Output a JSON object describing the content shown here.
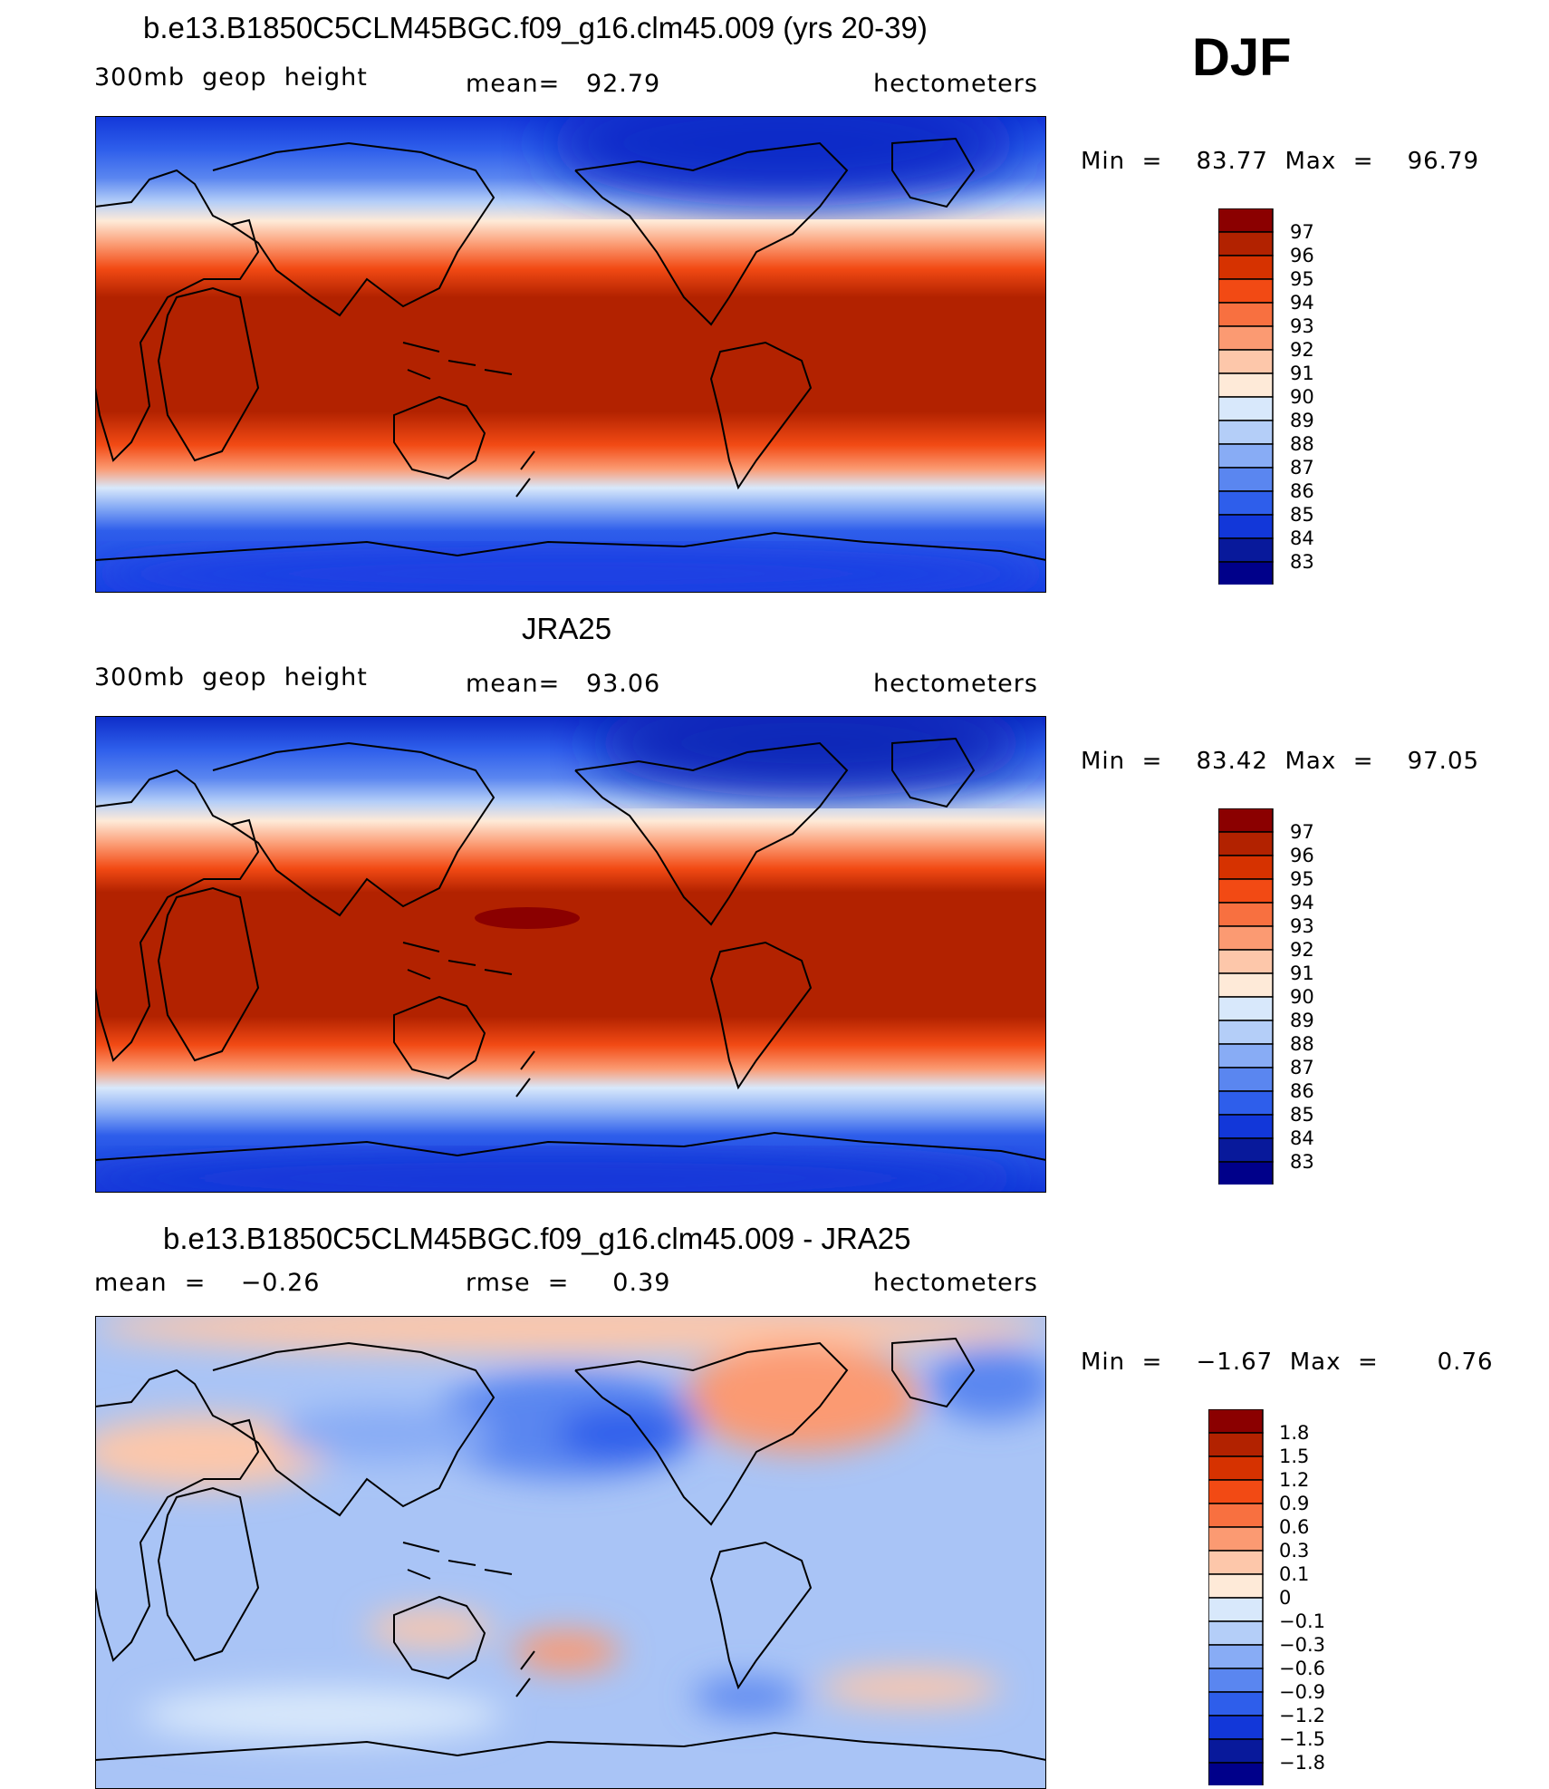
{
  "header": {
    "season": "DJF"
  },
  "panels": [
    {
      "title": "b.e13.B1850C5CLM45BGC.f09_g16.clm45.009 (yrs 20-39)",
      "left_text": "300mb  geop  height",
      "center_text": "mean=   92.79",
      "units": "hectometers",
      "minmax": "Min  =    83.77  Max  =    96.79",
      "colorbar_labels": [
        "97",
        "96",
        "95",
        "94",
        "93",
        "92",
        "91",
        "90",
        "89",
        "88",
        "87",
        "86",
        "85",
        "84",
        "83"
      ],
      "colors": [
        "#8B0000",
        "#B22200",
        "#D63200",
        "#F24A14",
        "#F87040",
        "#FB9A72",
        "#FDC7AA",
        "#FEEAD8",
        "#D8E8FB",
        "#B4CEF8",
        "#88ACF5",
        "#5A86F0",
        "#2E5EEB",
        "#1237D9",
        "#08199B",
        "#00008A"
      ],
      "fields": {
        "peak": "",
        "ant": "#1A3FE3",
        "arc": "#0D2CC8"
      }
    },
    {
      "title": "JRA25",
      "left_text": "300mb  geop  height",
      "center_text": "mean=   93.06",
      "units": "hectometers",
      "minmax": "Min  =    83.42  Max  =    97.05",
      "colorbar_labels": [
        "97",
        "96",
        "95",
        "94",
        "93",
        "92",
        "91",
        "90",
        "89",
        "88",
        "87",
        "86",
        "85",
        "84",
        "83"
      ],
      "colors": [
        "#8B0000",
        "#B22200",
        "#D63200",
        "#F24A14",
        "#F87040",
        "#FB9A72",
        "#FDC7AA",
        "#FEEAD8",
        "#D8E8FB",
        "#B4CEF8",
        "#88ACF5",
        "#5A86F0",
        "#2E5EEB",
        "#1237D9",
        "#08199B",
        "#00008A"
      ],
      "fields": {
        "peak": "#8B0000",
        "ant": "#1237D9",
        "arc": "#0A25B8"
      }
    },
    {
      "title": "b.e13.B1850C5CLM45BGC.f09_g16.clm45.009 - JRA25",
      "left_text": "mean  =    −0.26",
      "center_text": "rmse  =     0.39",
      "units": "hectometers",
      "minmax": "Min  =    −1.67  Max  =       0.76",
      "colorbar_labels": [
        "1.8",
        "1.5",
        "1.2",
        "0.9",
        "0.6",
        "0.3",
        "0.1",
        "0",
        "−0.1",
        "−0.3",
        "−0.6",
        "−0.9",
        "−1.2",
        "−1.5",
        "−1.8"
      ],
      "colors": [
        "#8B0000",
        "#B22200",
        "#D63200",
        "#F24A14",
        "#F87040",
        "#FB9A72",
        "#FDC7AA",
        "#FEEAD8",
        "#D8E8FB",
        "#B4CEF8",
        "#88ACF5",
        "#5A86F0",
        "#2E5EEB",
        "#1237D9",
        "#08199B",
        "#00008A"
      ],
      "fields": {
        "base": "#A9C4F6",
        "warm": "#FB9A72",
        "cold": "#2E5EEB"
      }
    }
  ]
}
